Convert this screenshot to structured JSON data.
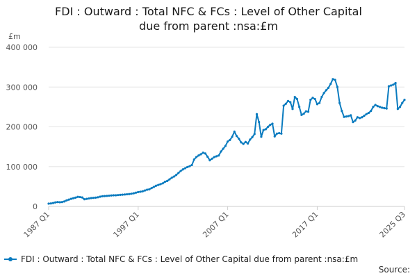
{
  "chart_data": {
    "type": "line",
    "title_lines": [
      "FDI : Outward : Total NFC & FCs : Level of Other Capital",
      "due from parent :nsa:£m"
    ],
    "ylabel": "£m",
    "ylim": [
      0,
      400000
    ],
    "y_ticks": [
      0,
      100000,
      200000,
      300000,
      400000
    ],
    "y_tick_labels": [
      "0",
      "100 000",
      "200 000",
      "300 000",
      "400 000"
    ],
    "x_tick_labels": [
      "1987 Q1",
      "1997 Q1",
      "2007 Q1",
      "2017 Q1",
      "2025 Q3"
    ],
    "grid": true,
    "legend_position": "bottom-left",
    "color": "#0a7bbf",
    "series": [
      {
        "name": "FDI : Outward : Total NFC & FCs : Level of Other Capital due from parent :nsa:£m",
        "values": [
          7000,
          7500,
          8500,
          10000,
          11000,
          10500,
          11000,
          12500,
          15000,
          17000,
          19000,
          20500,
          22000,
          24000,
          23500,
          22500,
          18000,
          19000,
          20000,
          21000,
          21500,
          22000,
          23000,
          24500,
          25500,
          26000,
          26500,
          27000,
          27500,
          28000,
          28000,
          28500,
          29000,
          29500,
          30000,
          30500,
          31000,
          32000,
          33000,
          34500,
          36000,
          37000,
          38000,
          40000,
          42000,
          43000,
          46000,
          49000,
          52000,
          54000,
          56000,
          58000,
          62000,
          64000,
          68000,
          72000,
          75000,
          79000,
          84000,
          89000,
          93000,
          96000,
          99000,
          101000,
          104000,
          118000,
          124000,
          128000,
          131000,
          135000,
          133000,
          125000,
          116000,
          120000,
          124000,
          126000,
          128000,
          138000,
          145000,
          152000,
          163000,
          167000,
          175000,
          188000,
          177000,
          170000,
          161000,
          157000,
          162000,
          158000,
          168000,
          174000,
          182000,
          232000,
          212000,
          175000,
          192000,
          194000,
          200000,
          205000,
          208000,
          176000,
          183000,
          184000,
          183000,
          253000,
          258000,
          265000,
          262000,
          245000,
          275000,
          270000,
          250000,
          230000,
          233000,
          239000,
          238000,
          268000,
          273000,
          270000,
          257000,
          260000,
          275000,
          285000,
          292000,
          298000,
          308000,
          320000,
          318000,
          300000,
          260000,
          240000,
          225000,
          226000,
          227000,
          229000,
          212000,
          216000,
          224000,
          222000,
          224000,
          228000,
          232000,
          235000,
          240000,
          250000,
          255000,
          252000,
          250000,
          248000,
          247000,
          246000,
          302000,
          304000,
          306000,
          310000,
          245000,
          250000,
          260000,
          268000
        ]
      }
    ],
    "source_label": "Source:"
  }
}
